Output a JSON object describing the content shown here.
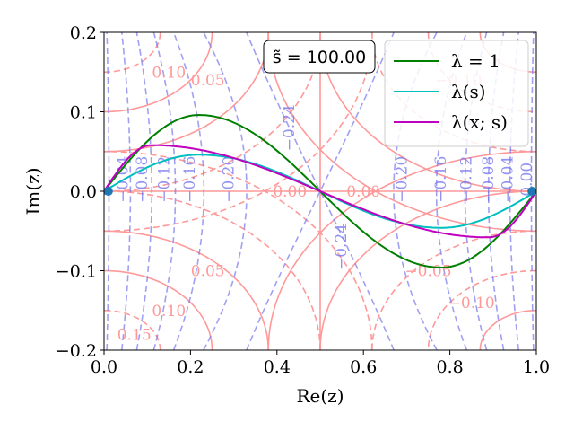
{
  "chart_data": {
    "type": "line",
    "title": "",
    "xlabel": "Re(z)",
    "ylabel": "Im(z)",
    "xlim": [
      0.0,
      1.0
    ],
    "ylim": [
      -0.2,
      0.2
    ],
    "xticks": [
      "0.0",
      "0.2",
      "0.4",
      "0.6",
      "0.8",
      "1.0"
    ],
    "yticks": [
      "−0.2",
      "−0.1",
      "0.0",
      "0.1",
      "0.2"
    ],
    "annotation": "s̃ = 100.00",
    "legend": {
      "placement": "top-right",
      "entries": [
        "λ = 1",
        "λ(s)",
        "λ(x; s)"
      ]
    },
    "series": [
      {
        "name": "λ = 1",
        "color": "#008000",
        "amplitude": 0.096,
        "peak_x": 0.22,
        "style": "solid"
      },
      {
        "name": "λ(s)",
        "color": "#00bfbf",
        "amplitude": 0.046,
        "peak_x": 0.22,
        "style": "solid"
      },
      {
        "name": "λ(x; s)",
        "color": "#bf00bf",
        "amplitude": 0.058,
        "peak_x": 0.11,
        "style": "solid"
      }
    ],
    "endpoints": {
      "x": [
        0.01,
        0.99
      ],
      "y": [
        0.0,
        0.0
      ],
      "color": "#1f77b4"
    },
    "contours_red": {
      "color": "#ff9999",
      "levels": [
        "0.00",
        "0.05",
        "0.10",
        "0.15",
        "−0.05",
        "−0.10"
      ],
      "labels": [
        {
          "text": "0.00",
          "x": 0.43,
          "y": 0.0
        },
        {
          "text": "0.00",
          "x": 0.6,
          "y": 0.0
        },
        {
          "text": "0.05",
          "x": 0.24,
          "y": 0.14
        },
        {
          "text": "0.10",
          "x": 0.15,
          "y": 0.15
        },
        {
          "text": "0.05",
          "x": 0.24,
          "y": -0.1
        },
        {
          "text": "0.10",
          "x": 0.15,
          "y": -0.15
        },
        {
          "text": "0.15",
          "x": 0.07,
          "y": -0.18
        },
        {
          "text": "−0.05",
          "x": 0.75,
          "y": -0.1
        },
        {
          "text": "−0.10",
          "x": 0.85,
          "y": -0.14
        },
        {
          "text": "−0.10",
          "x": 0.82,
          "y": 0.14
        }
      ]
    },
    "contours_blue": {
      "color": "#7777ee",
      "levels": [
        "−0.24",
        "−0.20",
        "−0.16",
        "−0.12",
        "−0.08",
        "−0.04",
        "0.00"
      ],
      "labels": [
        {
          "text": "−0.24",
          "x": 0.44,
          "y": 0.08
        },
        {
          "text": "−0.24",
          "x": 0.56,
          "y": -0.07
        },
        {
          "text": "−0.20",
          "x": 0.3,
          "y": 0.015
        },
        {
          "text": "−0.16",
          "x": 0.21,
          "y": 0.015
        },
        {
          "text": "−0.12",
          "x": 0.15,
          "y": 0.015
        },
        {
          "text": "−0.08",
          "x": 0.1,
          "y": 0.015
        },
        {
          "text": "−0.04",
          "x": 0.055,
          "y": 0.015
        },
        {
          "text": "0",
          "x": 0.01,
          "y": 0.0
        },
        {
          "text": "−0.20",
          "x": 0.7,
          "y": 0.015
        },
        {
          "text": "−0.16",
          "x": 0.79,
          "y": 0.015
        },
        {
          "text": "−0.12",
          "x": 0.85,
          "y": 0.015
        },
        {
          "text": "−0.08",
          "x": 0.9,
          "y": 0.015
        },
        {
          "text": "−0.04",
          "x": 0.945,
          "y": 0.015
        },
        {
          "text": "0.00",
          "x": 0.99,
          "y": 0.015
        }
      ]
    }
  }
}
